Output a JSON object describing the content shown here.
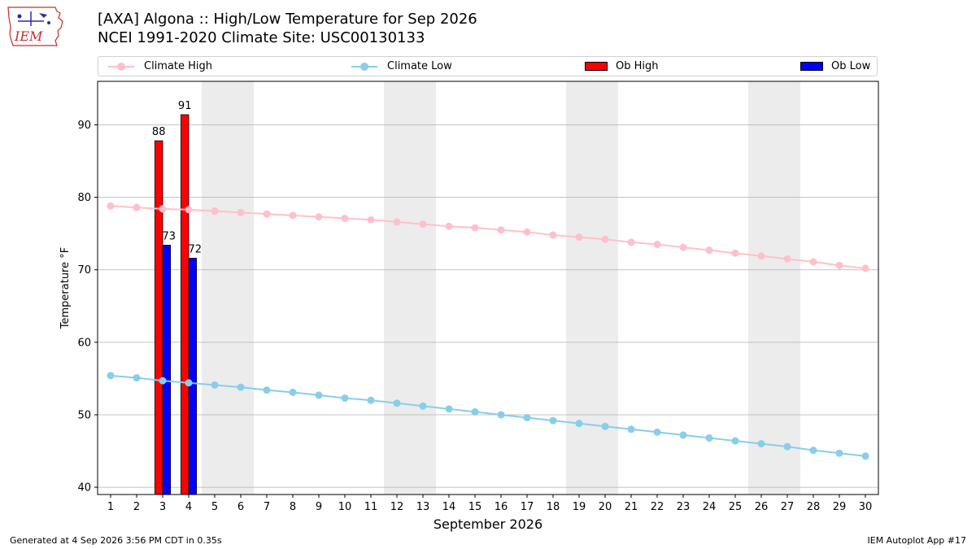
{
  "header": {
    "title_line1": "[AXA] Algona :: High/Low Temperature for Sep 2026",
    "title_line2": "NCEI 1991-2020 Climate Site: USC00130133",
    "logo_text": "IEM"
  },
  "footer": {
    "generated": "Generated at 4 Sep 2026 3:56 PM CDT in 0.35s",
    "app": "IEM Autoplot App #17"
  },
  "colors": {
    "climate_high": "#ffc0cb",
    "climate_low": "#87ceeb",
    "ob_high": "#ff0000",
    "ob_low": "#0000ff",
    "weekend_shade": "#ececec",
    "grid": "#b0b0b0"
  },
  "chart_data": {
    "type": "bar",
    "xlabel": "September 2026",
    "ylabel": "Temperature °F",
    "xlim": [
      0.5,
      30.5
    ],
    "ylim": [
      39,
      96
    ],
    "yticks": [
      40,
      50,
      60,
      70,
      80,
      90
    ],
    "grid": "horizontal",
    "legend_placement": "top",
    "weekend_days": [
      5,
      6,
      12,
      13,
      19,
      20,
      26,
      27
    ],
    "days": [
      1,
      2,
      3,
      4,
      5,
      6,
      7,
      8,
      9,
      10,
      11,
      12,
      13,
      14,
      15,
      16,
      17,
      18,
      19,
      20,
      21,
      22,
      23,
      24,
      25,
      26,
      27,
      28,
      29,
      30
    ],
    "series": [
      {
        "name": "Climate High",
        "kind": "line",
        "values": [
          78.8,
          78.6,
          78.4,
          78.3,
          78.1,
          77.9,
          77.7,
          77.5,
          77.3,
          77.1,
          76.9,
          76.6,
          76.3,
          76.0,
          75.8,
          75.5,
          75.2,
          74.8,
          74.5,
          74.2,
          73.8,
          73.5,
          73.1,
          72.7,
          72.3,
          71.9,
          71.5,
          71.1,
          70.6,
          70.2
        ]
      },
      {
        "name": "Climate Low",
        "kind": "line",
        "values": [
          55.4,
          55.1,
          54.7,
          54.4,
          54.1,
          53.8,
          53.4,
          53.1,
          52.7,
          52.3,
          52.0,
          51.6,
          51.2,
          50.8,
          50.4,
          50.0,
          49.6,
          49.2,
          48.8,
          48.4,
          48.0,
          47.6,
          47.2,
          46.8,
          46.4,
          46.0,
          45.6,
          45.1,
          44.7,
          44.3
        ]
      },
      {
        "name": "Ob High",
        "kind": "bar",
        "days": [
          3,
          4
        ],
        "values": [
          88,
          91
        ],
        "plot_values": [
          87.8,
          91.4
        ]
      },
      {
        "name": "Ob Low",
        "kind": "bar",
        "days": [
          3,
          4
        ],
        "values": [
          73,
          72
        ],
        "plot_values": [
          73.4,
          71.6
        ]
      }
    ]
  }
}
